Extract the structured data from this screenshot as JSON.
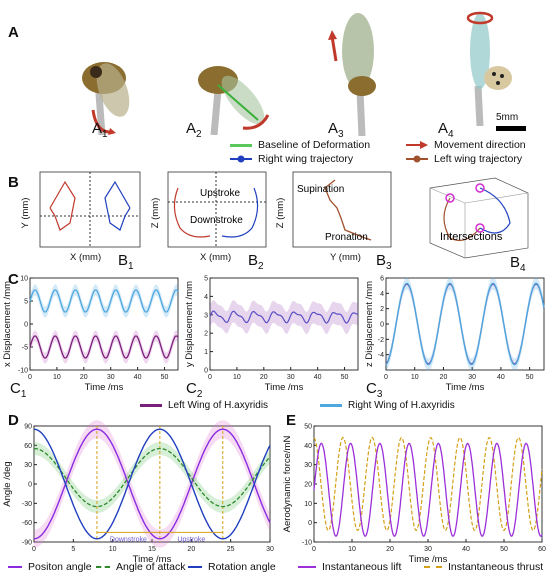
{
  "sections": {
    "A": "A",
    "B": "B",
    "C": "C",
    "D": "D",
    "E": "E"
  },
  "photos": [
    {
      "label": "A",
      "sub": "1"
    },
    {
      "label": "A",
      "sub": "2"
    },
    {
      "label": "A",
      "sub": "3"
    },
    {
      "label": "A",
      "sub": "4"
    }
  ],
  "scalebar": "5mm",
  "legendA": {
    "baseline": "Baseline of Deformation",
    "right_traj": "Right wing trajectory",
    "movement": "Movement direction",
    "left_traj": "Left wing trajectory"
  },
  "panelB": {
    "b1": {
      "label": "B",
      "sub": "1",
      "xlabel": "X (mm)",
      "ylabel": "Y (mm)"
    },
    "b2": {
      "label": "B",
      "sub": "2",
      "xlabel": "X (mm)",
      "ylabel": "Z (mm)",
      "upstroke": "Upstroke",
      "downstroke": "Downstroke"
    },
    "b3": {
      "label": "B",
      "sub": "3",
      "xlabel": "Y (mm)",
      "ylabel": "Z (mm)",
      "supination": "Supination",
      "pronation": "Pronation"
    },
    "b4": {
      "label": "B",
      "sub": "4",
      "annotation": "Intersections"
    }
  },
  "panelC": {
    "c1": {
      "label": "C",
      "sub": "1",
      "xlabel": "Time /ms",
      "ylabel": "x Displacement /mm"
    },
    "c2": {
      "label": "C",
      "sub": "2",
      "xlabel": "Time /ms",
      "ylabel": "y Displacement /mm"
    },
    "c3": {
      "label": "C",
      "sub": "3",
      "xlabel": "Time /ms",
      "ylabel": "z Displacement /mm"
    },
    "legend_left": "Left Wing of H.axyridis",
    "legend_right": "Right Wing of H.axyridis"
  },
  "panelD": {
    "xlabel": "Time /ms",
    "ylabel": "Angle /deg",
    "downstroke": "Downstroke",
    "upstroke": "Upstroke",
    "legend": [
      "Positon angle",
      "Angle of attack",
      "Rotation angle"
    ]
  },
  "panelE": {
    "xlabel": "Time /ms",
    "ylabel": "Aerodynamic force/mN",
    "legend": [
      "Instantaneous lift",
      "Instantaneous thrust"
    ]
  },
  "colors": {
    "left": "#7a1f7a",
    "right": "#4ea8e0",
    "red": "#c0392b",
    "blue": "#1f3fbf",
    "green": "#2e8b2e",
    "purple": "#8a2be2",
    "orange": "#d4a017"
  },
  "chart_data": [
    {
      "type": "line",
      "xlim": [
        0,
        55
      ],
      "ylim": [
        -10,
        10
      ],
      "xticks": [
        0,
        10,
        20,
        30,
        40,
        50
      ],
      "yticks": [
        -10,
        -5,
        0,
        5,
        10
      ],
      "series": [
        {
          "name": "Left Wing of H.axyridis",
          "mean": -5,
          "amp": 2.4
        },
        {
          "name": "Right Wing of H.axyridis",
          "mean": 5,
          "amp": 2.4
        }
      ]
    },
    {
      "type": "line",
      "xlim": [
        0,
        55
      ],
      "ylim": [
        0,
        5
      ],
      "xticks": [
        0,
        10,
        20,
        30,
        40,
        50
      ],
      "yticks": [
        0,
        1,
        2,
        3,
        4,
        5
      ],
      "series": [
        {
          "name": "Left Wing of H.axyridis",
          "mean": 2.9
        }
      ]
    },
    {
      "type": "line",
      "xlim": [
        0,
        55
      ],
      "ylim": [
        -6,
        6
      ],
      "xticks": [
        0,
        10,
        20,
        30,
        40,
        50
      ],
      "yticks": [
        -4,
        -2,
        0,
        2,
        4,
        6
      ],
      "series": [
        {
          "name": "Right Wing of H.axyridis",
          "amp": 5.3
        }
      ]
    },
    {
      "type": "line",
      "xlim": [
        0,
        30
      ],
      "ylim": [
        -90,
        90
      ],
      "xticks": [
        0,
        5,
        10,
        15,
        20,
        25,
        30
      ],
      "yticks": [
        -90,
        -60,
        -30,
        0,
        30,
        60,
        90
      ],
      "series": [
        {
          "name": "Positon angle",
          "amp": 85
        },
        {
          "name": "Angle of attack",
          "mean": 10,
          "amp": 45
        },
        {
          "name": "Rotation angle",
          "amp": 85
        }
      ]
    },
    {
      "type": "line",
      "xlim": [
        0,
        60
      ],
      "ylim": [
        -10,
        50
      ],
      "xticks": [
        0,
        10,
        20,
        30,
        40,
        50,
        60
      ],
      "yticks": [
        -10,
        0,
        10,
        20,
        30,
        40,
        50
      ],
      "series": [
        {
          "name": "Instantaneous lift",
          "mean": 17,
          "amp": 24
        },
        {
          "name": "Instantaneous thrust",
          "mean": 20,
          "amp": 24
        }
      ]
    }
  ]
}
